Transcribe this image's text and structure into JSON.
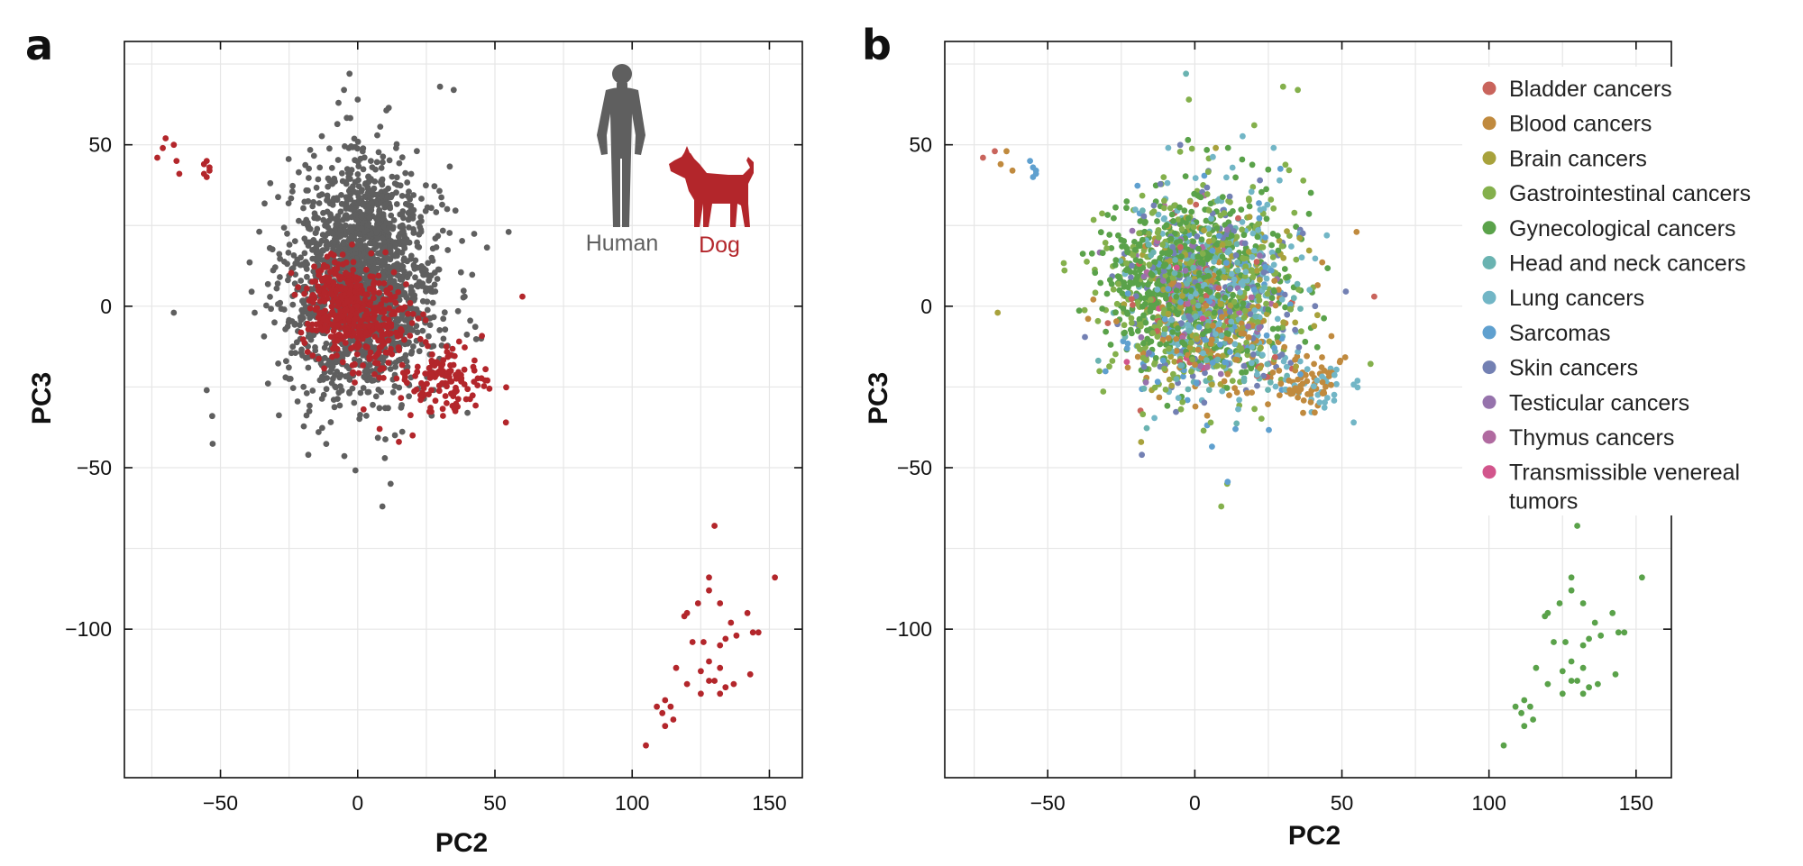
{
  "panels": [
    {
      "letter": "a",
      "xlabel": "PC2",
      "ylabel": "PC3"
    },
    {
      "letter": "b",
      "xlabel": "PC2",
      "ylabel": "PC3"
    }
  ],
  "inset": {
    "human_label": "Human",
    "dog_label": "Dog",
    "human_color": "#5f5f5f",
    "dog_color": "#b3262b"
  },
  "chart_data": [
    {
      "type": "scatter",
      "title": "",
      "xlabel": "PC2",
      "ylabel": "PC3",
      "xlim": [
        -85,
        162
      ],
      "ylim": [
        -146,
        82
      ],
      "xticks": [
        -50,
        0,
        50,
        100,
        150
      ],
      "yticks": [
        -100,
        -50,
        0,
        50
      ],
      "tick_labels_x": [
        "−50",
        "0",
        "50",
        "100",
        "150"
      ],
      "tick_labels_y": [
        "−100",
        "−50",
        "0",
        "50"
      ],
      "grid": true,
      "series": [
        {
          "name": "Human",
          "color": "#5f5f5f",
          "clusters": [
            {
              "center": [
                2,
                5
              ],
              "spread": [
                14,
                17
              ],
              "count": 1500
            },
            {
              "center": [
                2,
                25
              ],
              "spread": [
                10,
                13
              ],
              "count": 300
            }
          ],
          "points": [
            [
              -3,
              72
            ],
            [
              -5,
              67
            ],
            [
              -7,
              63
            ],
            [
              30,
              68
            ],
            [
              35,
              67
            ],
            [
              0,
              64
            ],
            [
              55,
              23
            ],
            [
              -67,
              -2
            ],
            [
              -18,
              -46
            ],
            [
              12,
              -55
            ],
            [
              9,
              -62
            ],
            [
              -53,
              -34
            ],
            [
              -55,
              -26
            ],
            [
              45,
              -10
            ],
            [
              40,
              -33
            ]
          ]
        },
        {
          "name": "Dog",
          "color": "#b3262b",
          "clusters": [
            {
              "center": [
                -8,
                1
              ],
              "spread": [
                6,
                7
              ],
              "count": 260
            },
            {
              "center": [
                6,
                -6
              ],
              "spread": [
                8,
                8
              ],
              "count": 220
            },
            {
              "center": [
                32,
                -23
              ],
              "spread": [
                7,
                5
              ],
              "count": 120
            }
          ],
          "points": [
            [
              -73,
              46
            ],
            [
              -71,
              49
            ],
            [
              -70,
              52
            ],
            [
              -67,
              50
            ],
            [
              -66,
              45
            ],
            [
              -65,
              41
            ],
            [
              -56,
              44
            ],
            [
              -55,
              45
            ],
            [
              -54,
              42
            ],
            [
              -56,
              41
            ],
            [
              -55,
              40
            ],
            [
              -54,
              43
            ],
            [
              60,
              3
            ],
            [
              54,
              -36
            ],
            [
              20,
              -40
            ],
            [
              15,
              -42
            ],
            [
              8,
              -38
            ],
            [
              130,
              -68
            ],
            [
              128,
              -84
            ],
            [
              128,
              -88
            ],
            [
              124,
              -92
            ],
            [
              120,
              -95
            ],
            [
              119,
              -96
            ],
            [
              132,
              -92
            ],
            [
              142,
              -95
            ],
            [
              136,
              -98
            ],
            [
              152,
              -84
            ],
            [
              144,
              -101
            ],
            [
              146,
              -101
            ],
            [
              138,
              -102
            ],
            [
              126,
              -104
            ],
            [
              122,
              -104
            ],
            [
              132,
              -105
            ],
            [
              134,
              -103
            ],
            [
              128,
              -110
            ],
            [
              132,
              -112
            ],
            [
              143,
              -114
            ],
            [
              116,
              -112
            ],
            [
              125,
              -113
            ],
            [
              120,
              -117
            ],
            [
              128,
              -116
            ],
            [
              130,
              -116
            ],
            [
              134,
              -118
            ],
            [
              137,
              -117
            ],
            [
              125,
              -120
            ],
            [
              132,
              -120
            ],
            [
              109,
              -124
            ],
            [
              112,
              -122
            ],
            [
              114,
              -124
            ],
            [
              111,
              -126
            ],
            [
              115,
              -128
            ],
            [
              112,
              -130
            ],
            [
              105,
              -136
            ]
          ]
        }
      ]
    },
    {
      "type": "scatter",
      "title": "",
      "xlabel": "PC2",
      "ylabel": "PC3",
      "xlim": [
        -85,
        162
      ],
      "ylim": [
        -146,
        82
      ],
      "xticks": [
        -50,
        0,
        50,
        100,
        150
      ],
      "yticks": [
        -100,
        -50,
        0,
        50
      ],
      "tick_labels_x": [
        "−50",
        "0",
        "50",
        "100",
        "150"
      ],
      "tick_labels_y": [
        "−100",
        "−50",
        "0",
        "50"
      ],
      "grid": true,
      "legend_position": "top-right",
      "series": [
        {
          "name": "Bladder cancers",
          "color": "#c9645c",
          "clusters": [
            {
              "center": [
                0,
                2
              ],
              "spread": [
                14,
                14
              ],
              "count": 60
            }
          ],
          "points": [
            [
              -72,
              46
            ],
            [
              -68,
              48
            ],
            [
              61,
              3
            ]
          ]
        },
        {
          "name": "Blood cancers",
          "color": "#c08a3e",
          "clusters": [
            {
              "center": [
                10,
                -5
              ],
              "spread": [
                14,
                12
              ],
              "count": 120
            },
            {
              "center": [
                38,
                -24
              ],
              "spread": [
                6,
                4
              ],
              "count": 60
            }
          ],
          "points": [
            [
              -64,
              48
            ],
            [
              -66,
              44
            ],
            [
              -62,
              42
            ],
            [
              55,
              23
            ]
          ]
        },
        {
          "name": "Brain cancers",
          "color": "#a8a23c",
          "clusters": [
            {
              "center": [
                5,
                5
              ],
              "spread": [
                14,
                16
              ],
              "count": 140
            }
          ],
          "points": [
            [
              -67,
              -2
            ]
          ]
        },
        {
          "name": "Gastrointestinal cancers",
          "color": "#84b04c",
          "clusters": [
            {
              "center": [
                0,
                5
              ],
              "spread": [
                16,
                17
              ],
              "count": 380
            }
          ],
          "points": [
            [
              -2,
              64
            ],
            [
              30,
              68
            ],
            [
              35,
              67
            ],
            [
              11,
              -55
            ],
            [
              9,
              -62
            ]
          ]
        },
        {
          "name": "Gynecological cancers",
          "color": "#5aa24a",
          "clusters": [
            {
              "center": [
                -10,
                8
              ],
              "spread": [
                10,
                10
              ],
              "count": 320
            },
            {
              "center": [
                8,
                10
              ],
              "spread": [
                14,
                15
              ],
              "count": 260
            }
          ],
          "points": [
            [
              130,
              -68
            ],
            [
              128,
              -84
            ],
            [
              128,
              -88
            ],
            [
              124,
              -92
            ],
            [
              120,
              -95
            ],
            [
              119,
              -96
            ],
            [
              132,
              -92
            ],
            [
              142,
              -95
            ],
            [
              136,
              -98
            ],
            [
              152,
              -84
            ],
            [
              144,
              -101
            ],
            [
              146,
              -101
            ],
            [
              138,
              -102
            ],
            [
              126,
              -104
            ],
            [
              122,
              -104
            ],
            [
              132,
              -105
            ],
            [
              134,
              -103
            ],
            [
              128,
              -110
            ],
            [
              132,
              -112
            ],
            [
              143,
              -114
            ],
            [
              116,
              -112
            ],
            [
              125,
              -113
            ],
            [
              120,
              -117
            ],
            [
              128,
              -116
            ],
            [
              130,
              -116
            ],
            [
              134,
              -118
            ],
            [
              137,
              -117
            ],
            [
              125,
              -120
            ],
            [
              132,
              -120
            ],
            [
              109,
              -124
            ],
            [
              112,
              -122
            ],
            [
              114,
              -124
            ],
            [
              111,
              -126
            ],
            [
              115,
              -128
            ],
            [
              112,
              -130
            ],
            [
              105,
              -136
            ]
          ]
        },
        {
          "name": "Head and neck cancers",
          "color": "#6ab3b1",
          "clusters": [
            {
              "center": [
                5,
                0
              ],
              "spread": [
                14,
                14
              ],
              "count": 150
            }
          ],
          "points": [
            [
              -3,
              72
            ]
          ]
        },
        {
          "name": "Lung cancers",
          "color": "#72b6c6",
          "clusters": [
            {
              "center": [
                10,
                5
              ],
              "spread": [
                15,
                16
              ],
              "count": 200
            },
            {
              "center": [
                40,
                -25
              ],
              "spread": [
                6,
                5
              ],
              "count": 30
            }
          ],
          "points": [
            [
              54,
              -36
            ]
          ]
        },
        {
          "name": "Sarcomas",
          "color": "#5fa0cf",
          "clusters": [
            {
              "center": [
                5,
                0
              ],
              "spread": [
                16,
                16
              ],
              "count": 110
            }
          ],
          "points": [
            [
              -56,
              45
            ],
            [
              -55,
              43
            ],
            [
              -54,
              42
            ],
            [
              -55,
              40
            ],
            [
              -54,
              41
            ]
          ]
        },
        {
          "name": "Skin cancers",
          "color": "#7380b3",
          "clusters": [
            {
              "center": [
                5,
                3
              ],
              "spread": [
                15,
                15
              ],
              "count": 160
            }
          ],
          "points": [
            [
              -18,
              -46
            ]
          ]
        },
        {
          "name": "Testicular cancers",
          "color": "#9673ac",
          "clusters": [
            {
              "center": [
                0,
                5
              ],
              "spread": [
                12,
                12
              ],
              "count": 70
            }
          ],
          "points": []
        },
        {
          "name": "Thymus cancers",
          "color": "#b06aa0",
          "clusters": [
            {
              "center": [
                5,
                5
              ],
              "spread": [
                12,
                12
              ],
              "count": 25
            }
          ],
          "points": []
        },
        {
          "name": "Transmissible venereal tumors",
          "color": "#d2558c",
          "clusters": [
            {
              "center": [
                0,
                0
              ],
              "spread": [
                10,
                10
              ],
              "count": 15
            }
          ],
          "points": []
        }
      ]
    }
  ]
}
